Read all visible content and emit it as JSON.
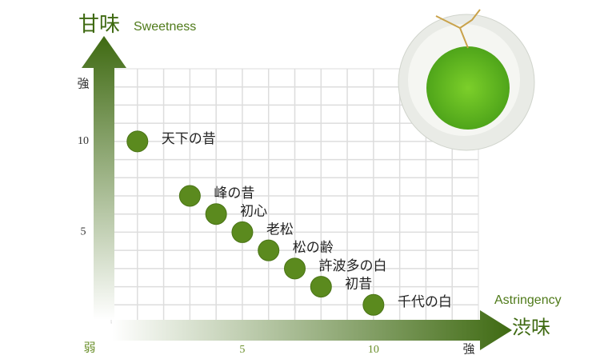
{
  "chart_data": {
    "type": "scatter",
    "y_title": "甘味",
    "y_subtitle": "Sweetness",
    "x_title": "渋味",
    "x_subtitle": "Astringency",
    "y_strong": "強",
    "x_strong": "強",
    "weak": "弱",
    "point_labels": [
      "天下の昔",
      "峰の昔",
      "初心",
      "老松",
      "松の齢",
      "許波多の白",
      "初昔",
      "千代の白"
    ],
    "x": [
      1,
      3,
      4,
      5,
      6,
      7,
      8,
      10
    ],
    "values": [
      10,
      7,
      6,
      5,
      4,
      3,
      2,
      1
    ],
    "color": "#5b8a1e",
    "xlim": [
      0,
      14
    ],
    "ylim": [
      0,
      14
    ],
    "xticks": [
      5,
      10
    ],
    "yticks": [
      5,
      10
    ],
    "grid": true
  }
}
